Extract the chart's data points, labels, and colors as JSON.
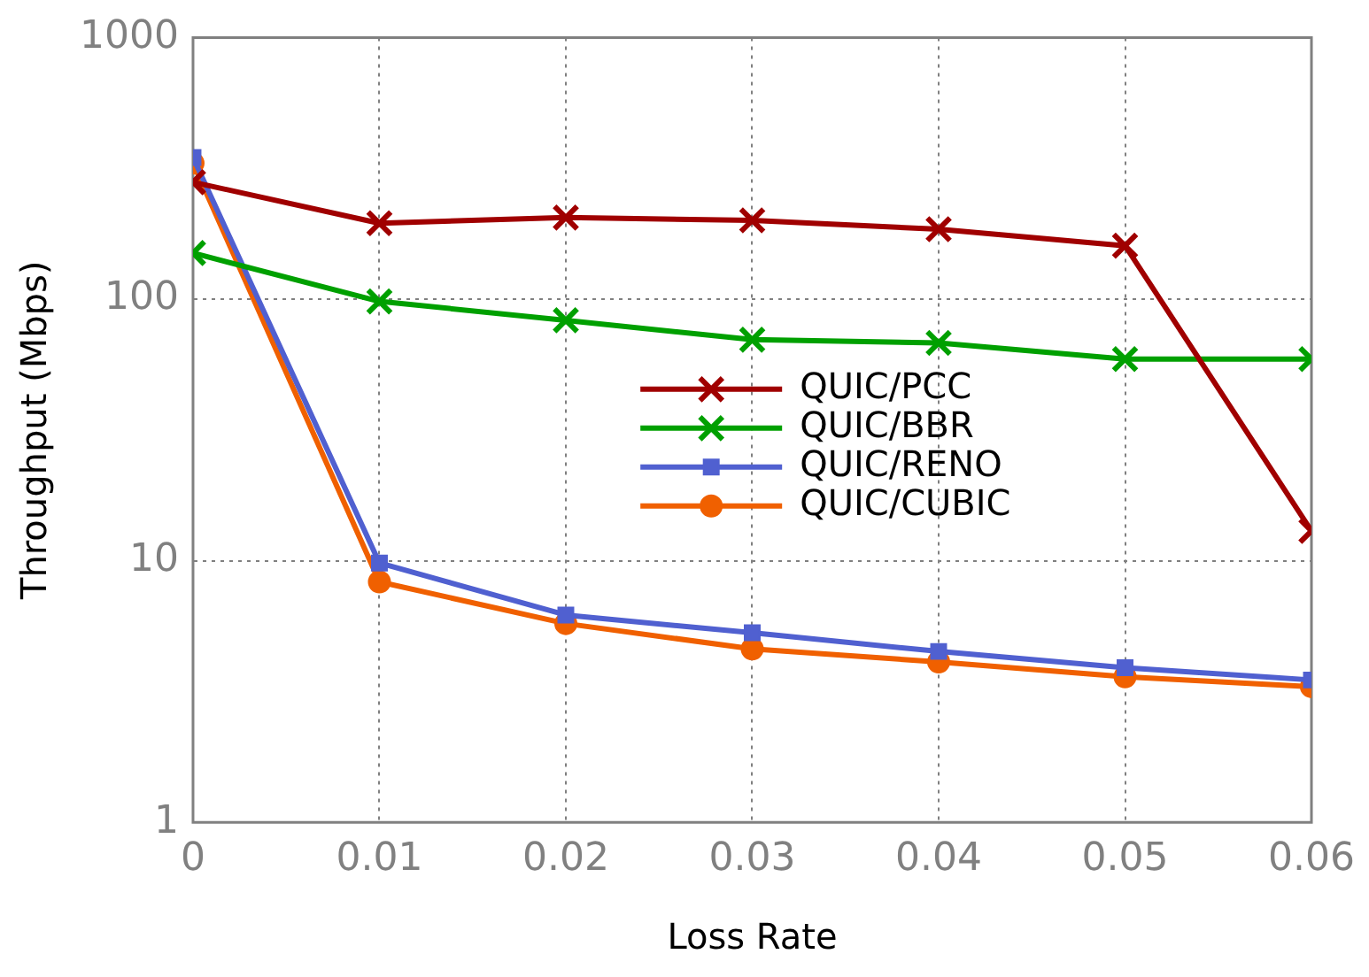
{
  "chart_data": {
    "type": "line",
    "xlabel": "Loss Rate",
    "ylabel": "Throughput (Mbps)",
    "x": [
      0,
      0.01,
      0.02,
      0.03,
      0.04,
      0.05,
      0.06
    ],
    "series": [
      {
        "name": "QUIC/PCC",
        "color": "#a00000",
        "marker": "cross",
        "values": [
          280,
          195,
          205,
          200,
          185,
          160,
          13
        ]
      },
      {
        "name": "QUIC/BBR",
        "color": "#00a000",
        "marker": "cross",
        "values": [
          150,
          98,
          83,
          70,
          68,
          59,
          59
        ]
      },
      {
        "name": "QUIC/RENO",
        "color": "#5060d0",
        "marker": "square",
        "values": [
          348,
          9.8,
          6.2,
          5.3,
          4.5,
          3.9,
          3.5
        ]
      },
      {
        "name": "QUIC/CUBIC",
        "color": "#f06000",
        "marker": "circle",
        "values": [
          331,
          8.3,
          5.75,
          4.6,
          4.1,
          3.6,
          3.3
        ]
      }
    ],
    "xlim": [
      0,
      0.06
    ],
    "xticks": [
      0,
      0.01,
      0.02,
      0.03,
      0.04,
      0.05,
      0.06
    ],
    "ylim": [
      1,
      1000
    ],
    "yticks": [
      1,
      10,
      100,
      1000
    ],
    "log": "y",
    "grid": true,
    "legend": "center right",
    "line_style": "solid"
  }
}
